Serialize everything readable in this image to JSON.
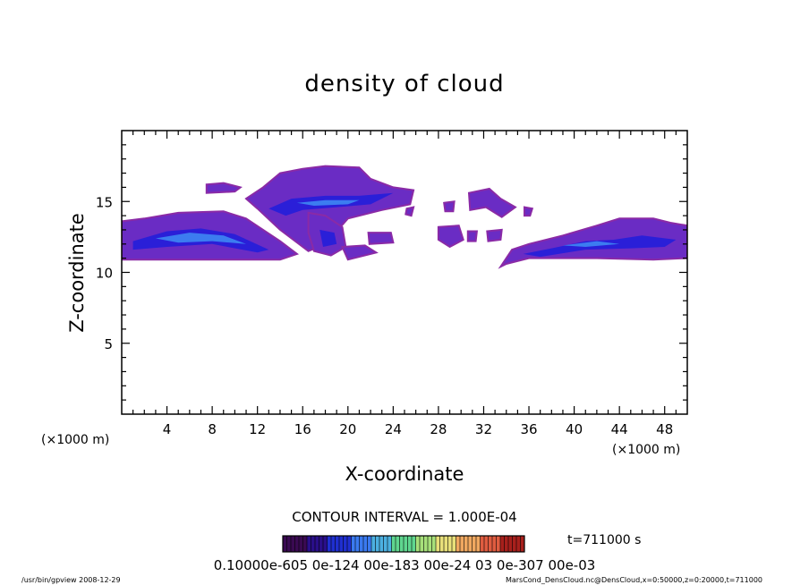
{
  "chart_data": {
    "type": "heatmap",
    "title": "density of cloud",
    "xlabel": "X-coordinate",
    "ylabel": "Z-coordinate",
    "x_unit_left": "(×1000 m)",
    "x_unit_right": "(×1000 m)",
    "xlim": [
      0,
      50
    ],
    "ylim": [
      0,
      20
    ],
    "x_ticks": [
      4,
      8,
      12,
      16,
      20,
      24,
      28,
      32,
      36,
      40,
      44,
      48
    ],
    "y_ticks": [
      5,
      10,
      15
    ],
    "contour_interval": "CONTOUR INTERVAL = 1.000E-04",
    "time_label": "t=711000 s",
    "colorbar": {
      "label_text": "0.10000e-605 0e-124 00e-183 00e-24 03 0e-307 00e-03",
      "range": [
        0.0001,
        0.0007
      ],
      "colors": [
        "#3a0a52",
        "#2a0f8a",
        "#1f2fd0",
        "#3a7af0",
        "#4cb0e0",
        "#5fd68f",
        "#a7e07a",
        "#e8e07a",
        "#f0a860",
        "#e05c40",
        "#a8201c"
      ]
    },
    "footer_left": "/usr/bin/gpview  2008-12-29",
    "footer_right": "MarsCond_DensCloud.nc@DensCloud,x=0:50000,z=0:20000,t=711000",
    "regions": [
      {
        "name": "left-band",
        "poly": [
          [
            0,
            13.6
          ],
          [
            2,
            13.8
          ],
          [
            5,
            14.2
          ],
          [
            9,
            14.3
          ],
          [
            11,
            13.8
          ],
          [
            14,
            12.2
          ],
          [
            15.5,
            11.3
          ],
          [
            14,
            10.9
          ],
          [
            0,
            10.9
          ]
        ],
        "core": [
          [
            1,
            12.2
          ],
          [
            4,
            12.9
          ],
          [
            7,
            13.1
          ],
          [
            10,
            12.7
          ],
          [
            13,
            11.6
          ],
          [
            12,
            11.4
          ],
          [
            8,
            12.0
          ],
          [
            4,
            11.8
          ],
          [
            1,
            11.6
          ]
        ],
        "inner": [
          [
            3,
            12.4
          ],
          [
            6,
            12.8
          ],
          [
            9,
            12.6
          ],
          [
            11,
            12.0
          ],
          [
            8,
            12.2
          ],
          [
            5,
            12.1
          ]
        ]
      },
      {
        "name": "upper-cloud",
        "poly": [
          [
            11,
            15.2
          ],
          [
            12.5,
            16.0
          ],
          [
            14,
            17.0
          ],
          [
            16,
            17.3
          ],
          [
            18,
            17.5
          ],
          [
            21,
            17.4
          ],
          [
            22,
            16.6
          ],
          [
            24,
            16.0
          ],
          [
            25.8,
            15.8
          ],
          [
            25.5,
            14.8
          ],
          [
            23,
            14.4
          ],
          [
            20,
            13.8
          ],
          [
            18,
            12.0
          ],
          [
            16.5,
            11.5
          ],
          [
            14,
            13.0
          ],
          [
            12,
            14.5
          ]
        ],
        "core": [
          [
            13,
            14.5
          ],
          [
            15,
            15.2
          ],
          [
            18,
            15.4
          ],
          [
            21,
            15.4
          ],
          [
            24,
            15.6
          ],
          [
            22,
            14.8
          ],
          [
            19,
            14.6
          ],
          [
            16,
            14.4
          ],
          [
            14.5,
            14.0
          ]
        ],
        "inner": [
          [
            15.5,
            14.9
          ],
          [
            18,
            15.1
          ],
          [
            21,
            15.1
          ],
          [
            20,
            14.8
          ],
          [
            17,
            14.7
          ]
        ]
      },
      {
        "name": "upper-left-patch",
        "poly": [
          [
            7.5,
            16.2
          ],
          [
            9,
            16.3
          ],
          [
            10.5,
            16.0
          ],
          [
            10,
            15.7
          ],
          [
            7.5,
            15.6
          ]
        ],
        "core": null,
        "inner": null
      },
      {
        "name": "mid-blob",
        "poly": [
          [
            16.5,
            14.2
          ],
          [
            18,
            14.0
          ],
          [
            19.5,
            13.2
          ],
          [
            19.8,
            11.8
          ],
          [
            18.5,
            11.2
          ],
          [
            17,
            11.5
          ],
          [
            16.5,
            12.8
          ]
        ],
        "core": [
          [
            17.5,
            13.0
          ],
          [
            18.8,
            12.8
          ],
          [
            19,
            12.0
          ],
          [
            17.8,
            11.8
          ]
        ],
        "inner": null
      },
      {
        "name": "small-center",
        "poly": [
          [
            19.5,
            11.8
          ],
          [
            21.5,
            11.9
          ],
          [
            22.5,
            11.4
          ],
          [
            20,
            10.9
          ]
        ],
        "core": null,
        "inner": null
      },
      {
        "name": "small-right-1",
        "poly": [
          [
            25.2,
            14.5
          ],
          [
            25.8,
            14.6
          ],
          [
            25.6,
            14.0
          ],
          [
            25.1,
            14.1
          ]
        ],
        "core": null,
        "inner": null
      },
      {
        "name": "small-mid-1",
        "poly": [
          [
            21.8,
            12.8
          ],
          [
            23.8,
            12.8
          ],
          [
            24,
            12.1
          ],
          [
            21.9,
            12.0
          ]
        ],
        "core": null,
        "inner": null
      },
      {
        "name": "small-28",
        "poly": [
          [
            28,
            13.2
          ],
          [
            29.8,
            13.3
          ],
          [
            30.2,
            12.3
          ],
          [
            29,
            11.8
          ],
          [
            28,
            12.3
          ]
        ],
        "core": null,
        "inner": null
      },
      {
        "name": "small-28-top",
        "poly": [
          [
            28.5,
            14.9
          ],
          [
            29.4,
            15.0
          ],
          [
            29.3,
            14.3
          ],
          [
            28.6,
            14.3
          ]
        ],
        "core": null,
        "inner": null
      },
      {
        "name": "small-30",
        "poly": [
          [
            30.6,
            12.9
          ],
          [
            31.4,
            12.9
          ],
          [
            31.3,
            12.2
          ],
          [
            30.6,
            12.2
          ]
        ],
        "core": null,
        "inner": null
      },
      {
        "name": "small-32",
        "poly": [
          [
            32.3,
            12.9
          ],
          [
            33.6,
            13.0
          ],
          [
            33.5,
            12.3
          ],
          [
            32.4,
            12.2
          ]
        ],
        "core": null,
        "inner": null
      },
      {
        "name": "upper-right-patch",
        "poly": [
          [
            30.7,
            15.6
          ],
          [
            32.5,
            15.9
          ],
          [
            33.5,
            15.2
          ],
          [
            34.8,
            14.6
          ],
          [
            33.6,
            13.9
          ],
          [
            32.2,
            14.6
          ],
          [
            30.8,
            14.4
          ]
        ],
        "core": null,
        "inner": null
      },
      {
        "name": "small-36",
        "poly": [
          [
            35.6,
            14.6
          ],
          [
            36.3,
            14.5
          ],
          [
            36.1,
            14.0
          ],
          [
            35.6,
            14.0
          ]
        ],
        "core": null,
        "inner": null
      },
      {
        "name": "right-band",
        "poly": [
          [
            33.5,
            10.4
          ],
          [
            34.5,
            11.6
          ],
          [
            36,
            12.0
          ],
          [
            39,
            12.6
          ],
          [
            42,
            13.3
          ],
          [
            44,
            13.8
          ],
          [
            47,
            13.8
          ],
          [
            48.5,
            13.5
          ],
          [
            50,
            13.3
          ],
          [
            50,
            11.0
          ],
          [
            47,
            10.9
          ],
          [
            42,
            11.0
          ],
          [
            36,
            11.0
          ],
          [
            34,
            10.6
          ]
        ],
        "core": [
          [
            35.5,
            11.3
          ],
          [
            38,
            11.7
          ],
          [
            41,
            12.2
          ],
          [
            43.5,
            12.3
          ],
          [
            46,
            12.6
          ],
          [
            49,
            12.3
          ],
          [
            48,
            11.8
          ],
          [
            45,
            11.7
          ],
          [
            41,
            11.6
          ],
          [
            37,
            11.1
          ]
        ],
        "inner": [
          [
            39,
            11.9
          ],
          [
            42,
            12.2
          ],
          [
            44,
            12.0
          ],
          [
            41,
            11.8
          ]
        ]
      }
    ]
  }
}
